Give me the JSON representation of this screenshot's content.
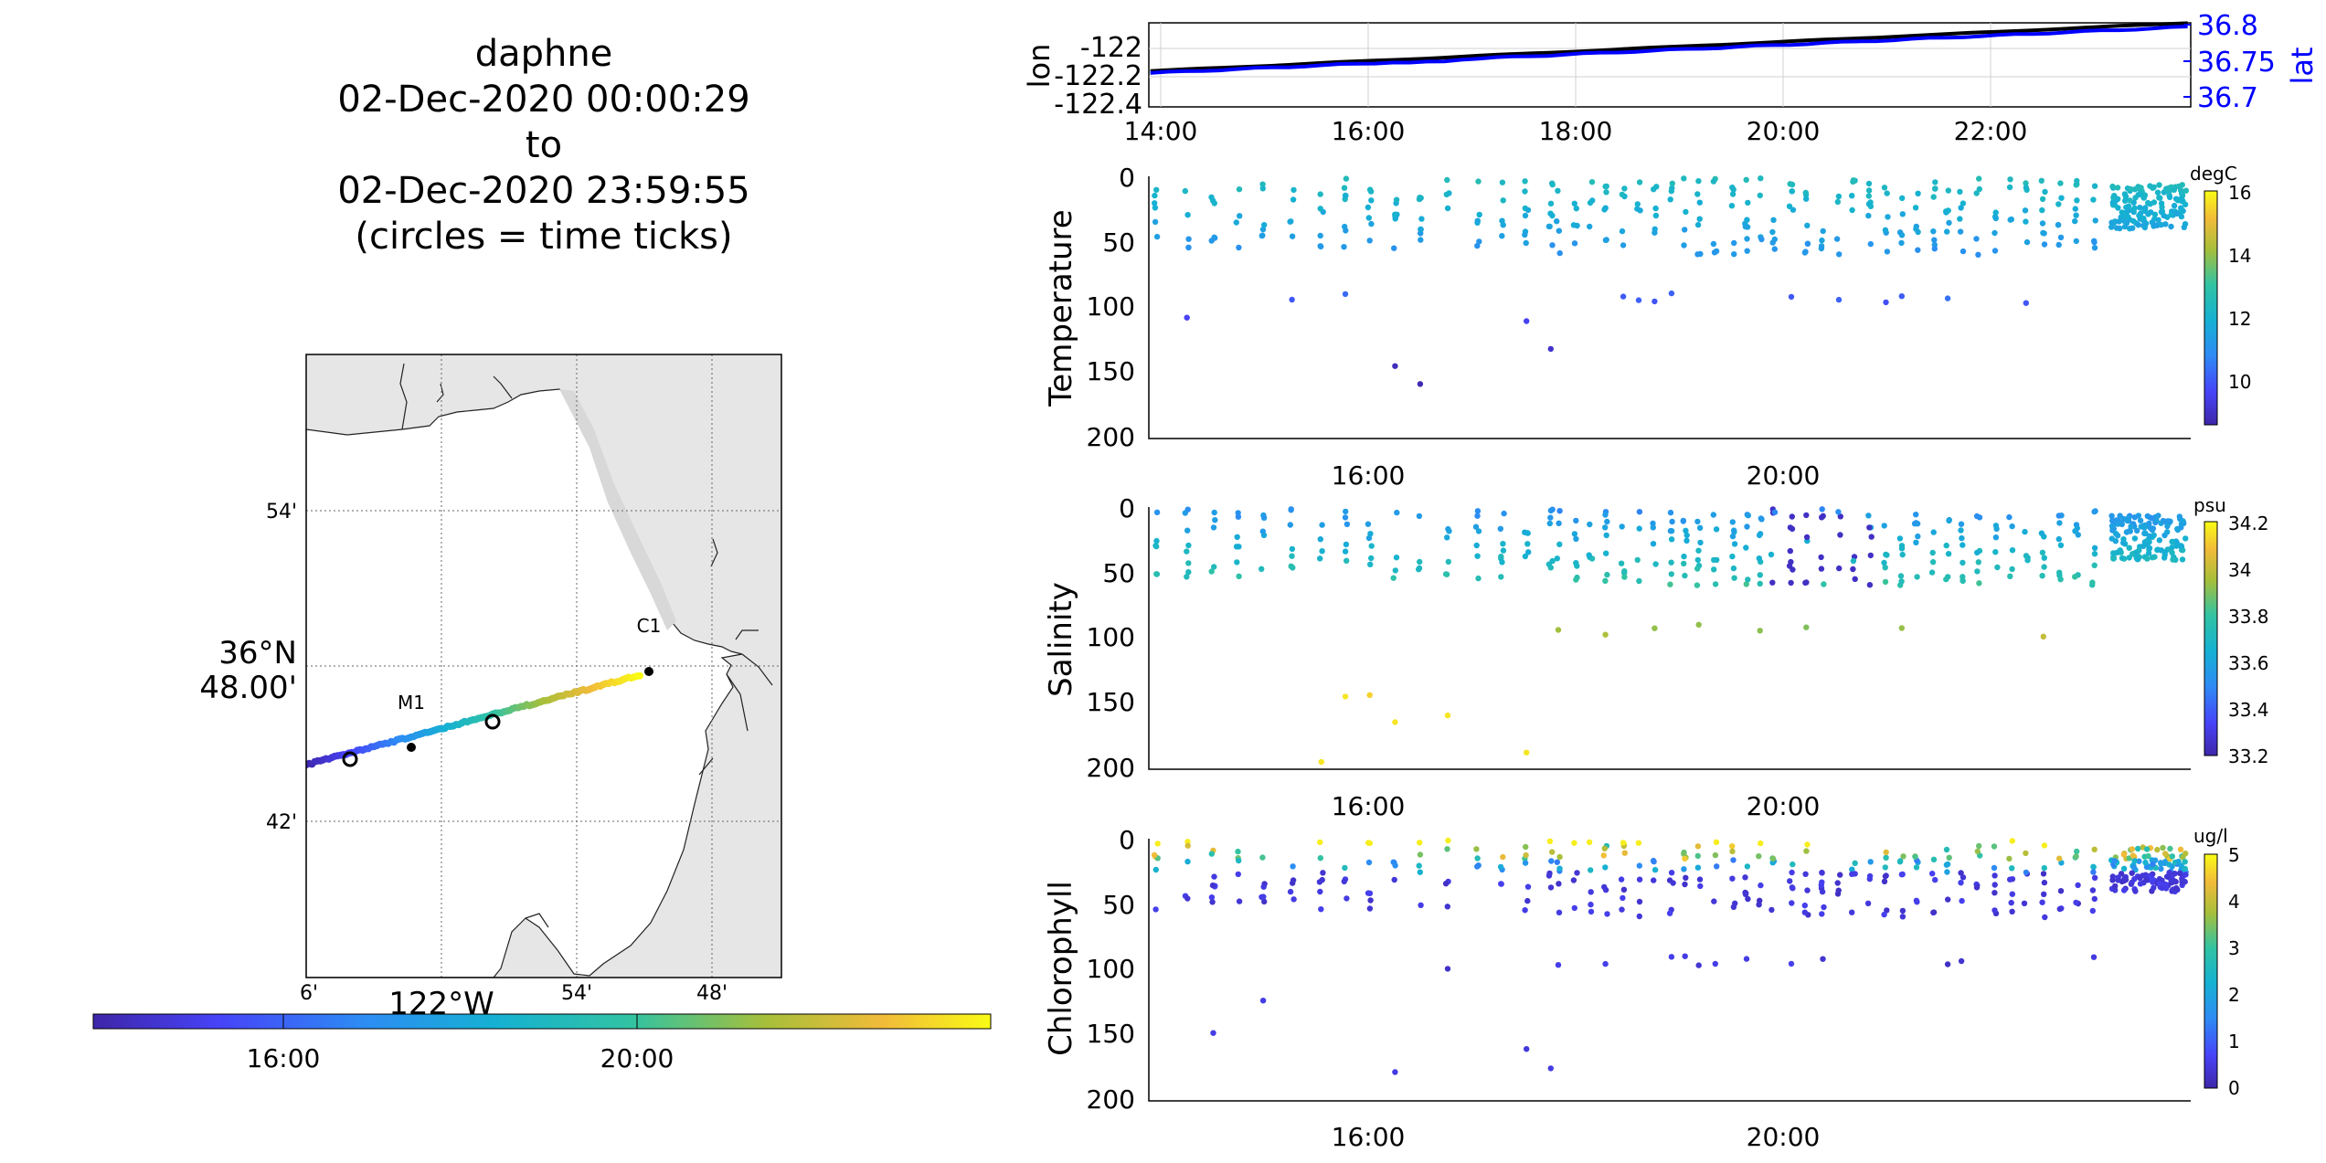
{
  "header": {
    "lines": [
      "daphne",
      "02-Dec-2020 00:00:29",
      "to",
      "02-Dec-2020 23:59:55",
      "(circles = time ticks)"
    ]
  },
  "colors": {
    "land": "#e6e6e6",
    "lon_line": "#000000",
    "lat_line": "#0000ff",
    "lat_axis": "#0000ff",
    "parula": [
      "#3e26a8",
      "#4743f8",
      "#2d8cf4",
      "#15b1d2",
      "#32c3a2",
      "#a7bf3a",
      "#f1bb3a",
      "#f9fb15"
    ]
  },
  "map": {
    "lat_ticks": [
      "54'",
      "36°N",
      "48.00'",
      "42'"
    ],
    "lat_tick_values": [
      36.9,
      36.8,
      36.7
    ],
    "lon_ticks": [
      "6'",
      "54'",
      "48'"
    ],
    "lon_major_label": "122°W",
    "stations": [
      {
        "name": "M1",
        "lon": -122.0217,
        "lat": 36.7472
      },
      {
        "name": "C1",
        "lon": -121.8476,
        "lat": 36.799
      }
    ],
    "colorbar_ticks": [
      "16:00",
      "20:00"
    ]
  },
  "chart_data": [
    {
      "type": "line",
      "panel": "position",
      "ylabel": "lon",
      "ylabel_right": "lat",
      "x_ticks": [
        "14:00",
        "16:00",
        "18:00",
        "20:00",
        "22:00"
      ],
      "y_ticks": [
        "-122",
        "-122.2",
        "-122.4"
      ],
      "y_values": [
        -122,
        -122.2,
        -122.4
      ],
      "y2_ticks": [
        "36.8",
        "36.75",
        "36.7"
      ],
      "y2_values": [
        36.8,
        36.75,
        36.7
      ],
      "grid": true,
      "xlim_hours": [
        13.9,
        23.9
      ],
      "series": [
        {
          "name": "lon",
          "x_hours": [
            13.9,
            16.0,
            18.0,
            20.0,
            22.0,
            23.9
          ],
          "values": [
            -122.16,
            -122.1,
            -122.03,
            -121.96,
            -121.9,
            -121.82
          ]
        },
        {
          "name": "lat",
          "x_hours": [
            13.9,
            16.0,
            18.0,
            20.0,
            22.0,
            23.9
          ],
          "values": [
            36.733,
            36.742,
            36.756,
            36.768,
            36.785,
            36.797
          ]
        }
      ]
    },
    {
      "type": "scatter",
      "panel": "temperature",
      "ylabel": "Temperature",
      "x_ticks": [
        "16:00",
        "20:00"
      ],
      "y_ticks": [
        "0",
        "50",
        "100",
        "150",
        "200"
      ],
      "colorbar_label": "degC",
      "colorbar_ticks": [
        "16",
        "14",
        "12",
        "10"
      ],
      "clim": [
        8.5,
        16
      ],
      "ylim": [
        0,
        200
      ],
      "xlim_hours": [
        13.9,
        23.9
      ]
    },
    {
      "type": "scatter",
      "panel": "salinity",
      "ylabel": "Salinity",
      "x_ticks": [
        "16:00",
        "20:00"
      ],
      "y_ticks": [
        "0",
        "50",
        "100",
        "150",
        "200"
      ],
      "colorbar_label": "psu",
      "colorbar_ticks": [
        "34.2",
        "34",
        "33.8",
        "33.6",
        "33.4",
        "33.2"
      ],
      "clim": [
        33.17,
        34.22
      ],
      "ylim": [
        0,
        200
      ],
      "xlim_hours": [
        13.9,
        23.9
      ]
    },
    {
      "type": "scatter",
      "panel": "chlorophyll",
      "ylabel": "Chlorophyll",
      "x_ticks": [
        "16:00",
        "20:00"
      ],
      "y_ticks": [
        "0",
        "50",
        "100",
        "150",
        "200"
      ],
      "colorbar_label": "ug/l",
      "colorbar_ticks": [
        "5",
        "4",
        "3",
        "2",
        "1",
        "0"
      ],
      "clim": [
        0,
        5
      ],
      "ylim": [
        0,
        200
      ],
      "xlim_hours": [
        13.9,
        23.9
      ]
    }
  ]
}
